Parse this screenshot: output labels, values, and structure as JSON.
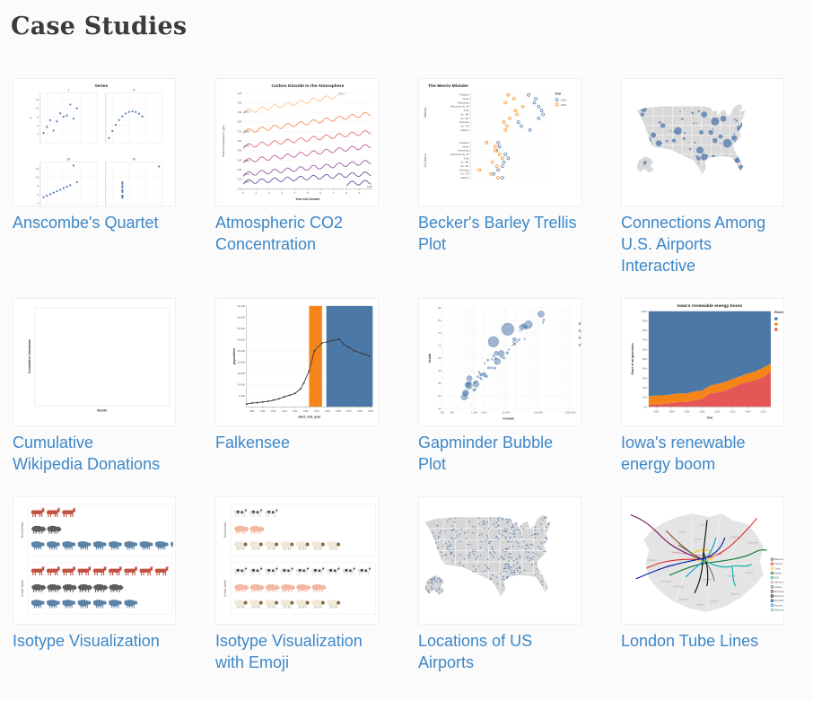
{
  "page": {
    "title": "Case Studies"
  },
  "theme": {
    "link_color": "#3d87c8",
    "title_color": "#3b3b3b",
    "background": "#fbfbfb"
  },
  "cards": [
    {
      "id": "anscombe",
      "label": "Anscombe's Quartet"
    },
    {
      "id": "co2",
      "label": "Atmospheric CO2\nConcentration"
    },
    {
      "id": "barley",
      "label": "Becker's Barley Trellis\nPlot"
    },
    {
      "id": "airports_connections",
      "label": "Connections Among\nU.S. Airports\nInteractive"
    },
    {
      "id": "wikipedia",
      "label": "Cumulative\nWikipedia Donations"
    },
    {
      "id": "falkensee",
      "label": "Falkensee"
    },
    {
      "id": "gapminder",
      "label": "Gapminder Bubble\nPlot"
    },
    {
      "id": "iowa",
      "label": "Iowa's renewable\nenergy boom"
    },
    {
      "id": "isotype",
      "label": "Isotype Visualization"
    },
    {
      "id": "isotype_emoji",
      "label": "Isotype Visualization\nwith Emoji"
    },
    {
      "id": "airports_locations",
      "label": "Locations of US\nAirports"
    },
    {
      "id": "tube",
      "label": "London Tube Lines"
    }
  ],
  "chart_data": [
    {
      "id": "anscombe",
      "type": "scatter_trellis",
      "title": "Series",
      "panels": [
        "I",
        "II",
        "III",
        "IV"
      ],
      "y_label": "Y",
      "y_ticks": [
        4,
        6,
        8,
        10,
        12
      ],
      "x_grid": [
        5,
        10,
        15,
        20
      ],
      "point_color": "#4c78a8",
      "series": [
        {
          "x": [
            10,
            8,
            13,
            9,
            11,
            14,
            6,
            4,
            12,
            7,
            5
          ],
          "y": [
            8.04,
            6.95,
            7.58,
            8.81,
            8.33,
            9.96,
            7.24,
            4.26,
            10.84,
            4.82,
            5.68
          ]
        },
        {
          "x": [
            10,
            8,
            13,
            9,
            11,
            14,
            6,
            4,
            12,
            7,
            5
          ],
          "y": [
            9.14,
            8.14,
            8.74,
            8.77,
            9.26,
            8.1,
            6.13,
            3.1,
            9.13,
            7.26,
            4.74
          ]
        },
        {
          "x": [
            10,
            8,
            13,
            9,
            11,
            14,
            6,
            4,
            12,
            7,
            5
          ],
          "y": [
            7.46,
            6.77,
            12.74,
            7.11,
            7.81,
            8.84,
            6.08,
            5.39,
            8.15,
            6.42,
            5.73
          ]
        },
        {
          "x": [
            8,
            8,
            8,
            8,
            8,
            8,
            8,
            19,
            8,
            8,
            8
          ],
          "y": [
            6.58,
            5.76,
            7.71,
            8.84,
            8.47,
            7.04,
            5.25,
            12.5,
            5.56,
            7.91,
            6.89
          ]
        }
      ]
    },
    {
      "id": "co2",
      "type": "multi_line",
      "title": "Carbon Dioxide in the Atmosphere",
      "x_label": "Year into Decade",
      "y_label": "CO2 concentration in ppm",
      "x_ticks": [
        0,
        1,
        2,
        3,
        4,
        5,
        6,
        7,
        8,
        9
      ],
      "y_ticks": [
        310,
        320,
        330,
        340,
        350,
        360,
        370,
        380,
        390,
        400,
        410
      ],
      "series": [
        {
          "label": "1958",
          "base": 315.3,
          "growth": 0.8,
          "start": 8,
          "color": "#584fa0",
          "label_pos": "end"
        },
        {
          "label": "1960",
          "base": 316.9,
          "growth": 0.9,
          "color": "#6a55a6",
          "label_pos": "start"
        },
        {
          "label": "1970",
          "base": 325.1,
          "growth": 1.3,
          "color": "#9459a8",
          "label_pos": "start"
        },
        {
          "label": "1980",
          "base": 338.8,
          "growth": 1.6,
          "color": "#c25f9a",
          "label_pos": "start"
        },
        {
          "label": "1990",
          "base": 354.4,
          "growth": 1.5,
          "color": "#e56f75",
          "label_pos": "start"
        },
        {
          "label": "2000",
          "base": 369.6,
          "growth": 1.9,
          "color": "#f78f58",
          "label_pos": "start"
        },
        {
          "label": "2010",
          "base": 390.1,
          "growth": 2.3,
          "end": 7.3,
          "end_label": "2017",
          "color": "#fdc38d",
          "label_pos": "start"
        }
      ]
    },
    {
      "id": "barley",
      "type": "dot_trellis",
      "title": "The Morris Mistake",
      "sites": [
        "Waseca",
        "Crookston"
      ],
      "varieties": [
        "Peatland",
        "Velvet",
        "Manchuria",
        "Wisconsin No. 38",
        "Trebi",
        "No. 462",
        "No. 457",
        "Svansota",
        "No. 475",
        "Glabron"
      ],
      "legend": {
        "title": "Year",
        "entries": [
          {
            "label": "1931",
            "color": "#4c78a8"
          },
          {
            "label": "1932",
            "color": "#f58518"
          }
        ]
      },
      "waseca_1931": [
        55,
        60,
        59,
        62,
        64,
        65,
        62,
        48,
        50,
        56
      ],
      "waseca_1932": [
        41,
        45,
        39,
        51,
        46,
        47,
        42,
        38,
        40,
        39
      ],
      "crookston_1931": [
        34,
        35,
        33,
        39,
        41,
        38,
        37,
        34,
        31,
        37
      ],
      "crookston_1932": [
        26,
        32,
        32,
        35,
        37,
        30,
        33,
        21,
        29,
        34
      ]
    },
    {
      "id": "airports_connections",
      "type": "us_bubble_map",
      "land_color": "#d9d9d9",
      "bubble_color": "#4c78a8",
      "hubs": [
        [
          8,
          9,
          2.2
        ],
        [
          7,
          13,
          1.4
        ],
        [
          6.5,
          24,
          2.2
        ],
        [
          11,
          32,
          2.6
        ],
        [
          13,
          35,
          1.6
        ],
        [
          15,
          28,
          2.0
        ],
        [
          19,
          34,
          2.2
        ],
        [
          22,
          21,
          1.8
        ],
        [
          33,
          25,
          2.8
        ],
        [
          30,
          32,
          1.4
        ],
        [
          49,
          39,
          2.6
        ],
        [
          52,
          44,
          2.4
        ],
        [
          48,
          45,
          1.5
        ],
        [
          52,
          13,
          2.2
        ],
        [
          50,
          26,
          1.6
        ],
        [
          57,
          26,
          1.8
        ],
        [
          60,
          18,
          3.0
        ],
        [
          66,
          16,
          2.2
        ],
        [
          69,
          34,
          3.2
        ],
        [
          74,
          30,
          2.0
        ],
        [
          64,
          29,
          1.6
        ],
        [
          60,
          32,
          1.8
        ],
        [
          82,
          17,
          2.6
        ],
        [
          80.5,
          20,
          1.8
        ],
        [
          78,
          23,
          2.2
        ],
        [
          86,
          13,
          2.0
        ],
        [
          79,
          52,
          2.2
        ],
        [
          77,
          46,
          2.0
        ],
        [
          75,
          47,
          1.6
        ],
        [
          59,
          44,
          1.5
        ],
        [
          9,
          48,
          1.2
        ]
      ]
    },
    {
      "id": "wikipedia",
      "type": "empty_plot",
      "y_label": "Cumulative Donations",
      "x_label": "Month"
    },
    {
      "id": "falkensee",
      "type": "line_with_bands",
      "y_label": "population",
      "x_label": "start, end, year",
      "y_ticks": [
        5000,
        10000,
        15000,
        20000,
        25000,
        30000,
        35000,
        40000,
        45000
      ],
      "x_ticks": [
        1880,
        1890,
        1900,
        1910,
        1920,
        1930,
        1940,
        1950,
        1960,
        1970,
        1980,
        1990
      ],
      "bands": [
        {
          "from": 1933,
          "to": 1945,
          "color": "#f58518"
        },
        {
          "from": 1949,
          "to": 1992,
          "color": "#4c78a8"
        }
      ],
      "line_color": "#3a3a3a",
      "points": [
        [
          1875,
          1300
        ],
        [
          1880,
          1700
        ],
        [
          1885,
          1900
        ],
        [
          1890,
          2200
        ],
        [
          1895,
          2500
        ],
        [
          1900,
          3000
        ],
        [
          1905,
          3600
        ],
        [
          1910,
          4500
        ],
        [
          1915,
          5200
        ],
        [
          1920,
          6000
        ],
        [
          1925,
          8000
        ],
        [
          1928,
          10500
        ],
        [
          1933,
          16000
        ],
        [
          1938,
          25000
        ],
        [
          1945,
          28500
        ],
        [
          1950,
          29000
        ],
        [
          1955,
          29600
        ],
        [
          1961,
          30200
        ],
        [
          1965,
          28000
        ],
        [
          1970,
          26500
        ],
        [
          1975,
          25000
        ],
        [
          1981,
          24000
        ],
        [
          1985,
          23400
        ],
        [
          1989,
          22700
        ]
      ]
    },
    {
      "id": "gapminder",
      "type": "bubble_scatter",
      "x_label": "income",
      "y_label": "health",
      "x_ticks": [
        {
          "label": "100",
          "log": 2
        },
        {
          "label": "200",
          "log": 2.301
        },
        {
          "label": "1,000",
          "log": 3
        },
        {
          "label": "2,000",
          "log": 3.301
        },
        {
          "label": "10,000",
          "log": 4
        },
        {
          "label": "100,000",
          "log": 5
        },
        {
          "label": "1,000,000",
          "log": 6
        }
      ],
      "y_ticks": [
        45,
        50,
        55,
        60,
        65,
        70,
        75,
        80,
        85
      ],
      "bubble_color": "#4c78a8",
      "large_points": [
        [
          3.6,
          71.5,
          6
        ],
        [
          4.05,
          76.5,
          7
        ]
      ]
    },
    {
      "id": "iowa",
      "type": "stacked_area",
      "title": "Iowa's renewable energy boom",
      "x_label": "Year",
      "y_label": "Share of net generation",
      "y_tick_labels": [
        "0%",
        "10%",
        "20%",
        "30%",
        "40%",
        "50%",
        "60%",
        "70%",
        "80%",
        "90%",
        "100%"
      ],
      "x_ticks": [
        2002,
        2004,
        2006,
        2008,
        2010,
        2012,
        2014,
        2016
      ],
      "years_start": 2001,
      "years_end": 2017,
      "legend_title": "Electricity source",
      "series": [
        {
          "name": "Fossil Fuels",
          "color": "#4c78a8"
        },
        {
          "name": "Nuclear Energy",
          "color": "#f58518"
        },
        {
          "name": "Renewables",
          "color": "#e45756"
        }
      ],
      "renewables_pct": [
        2,
        3,
        3,
        4,
        5,
        5,
        7,
        8,
        14,
        15,
        17,
        20,
        24,
        26,
        28,
        31,
        37
      ],
      "nuclear_pct": [
        9,
        9,
        9,
        9,
        9,
        9,
        9,
        9,
        8,
        9,
        9,
        9,
        8,
        9,
        9,
        10,
        8
      ]
    },
    {
      "id": "isotype",
      "type": "isotype",
      "style": "flat",
      "panels": [
        {
          "label": "Great Britain",
          "counts": {
            "cattle": 3,
            "pigs": 2,
            "sheep": 10
          }
        },
        {
          "label": "United States",
          "counts": {
            "cattle": 9,
            "pigs": 6,
            "sheep": 7
          }
        }
      ],
      "palettes": {
        "cattle": {
          "body": "#c25140"
        },
        "pigs": {
          "body": "#5d5d5d"
        },
        "sheep": {
          "body": "#5b83a6"
        }
      }
    },
    {
      "id": "isotype_emoji",
      "type": "isotype",
      "style": "emoji",
      "emoji": {
        "cattle": "🐄",
        "pigs": "🐖",
        "sheep": "🐏"
      },
      "panels": [
        {
          "label": "Great Britain",
          "counts": {
            "cattle": 3,
            "pigs": 2,
            "sheep": 7
          }
        },
        {
          "label": "United States",
          "counts": {
            "cattle": 9,
            "pigs": 6,
            "sheep": 7
          }
        }
      ],
      "palettes": {
        "cattle": {
          "body": "#e4e4e4",
          "patch": "#3d3d3d"
        },
        "pigs": {
          "body": "#f3b8a2",
          "snout": "#e09a86"
        },
        "sheep": {
          "body": "#efe9da",
          "head": "#8a6a45",
          "legs": "#b9b2a0"
        }
      }
    },
    {
      "id": "airports_locations",
      "type": "us_dot_map",
      "land_color": "#d6d6d6",
      "dot_color": "#4c78a8"
    },
    {
      "id": "tube",
      "type": "tube_map",
      "land_color": "#e4e4e4",
      "boroughs": [
        [
          "Enfield",
          92,
          32
        ],
        [
          "Barnet",
          68,
          40
        ],
        [
          "Havering",
          148,
          52
        ],
        [
          "Redbridge",
          128,
          46
        ],
        [
          "Hillingdon",
          34,
          72
        ],
        [
          "Ealing",
          54,
          78
        ],
        [
          "Hounslow",
          50,
          96
        ],
        [
          "Richmond",
          64,
          102
        ],
        [
          "Kingston",
          70,
          116
        ],
        [
          "Sutton",
          88,
          122
        ],
        [
          "Croydon",
          104,
          118
        ],
        [
          "Bromley",
          128,
          110
        ],
        [
          "Bexley",
          144,
          86
        ],
        [
          "Greenwich",
          122,
          90
        ],
        [
          "Lambeth",
          96,
          94
        ],
        [
          "Camden",
          86,
          48
        ]
      ],
      "lines": [
        {
          "name": "Bakerloo",
          "color": "#894E24"
        },
        {
          "name": "Central",
          "color": "#DC241F"
        },
        {
          "name": "Circle",
          "color": "#FFCE00"
        },
        {
          "name": "District",
          "color": "#017229"
        },
        {
          "name": "DLR",
          "color": "#00AFAD"
        },
        {
          "name": "Hammersmith",
          "color": "#D799AF"
        },
        {
          "name": "Jubilee",
          "color": "#6A7278"
        },
        {
          "name": "Metropolitan",
          "color": "#721154"
        },
        {
          "name": "Northern",
          "color": "#000000"
        },
        {
          "name": "Piccadilly",
          "color": "#0019A8"
        },
        {
          "name": "Victoria",
          "color": "#00A0E2"
        },
        {
          "name": "Waterloo & City",
          "color": "#6ABBAA"
        }
      ]
    }
  ]
}
